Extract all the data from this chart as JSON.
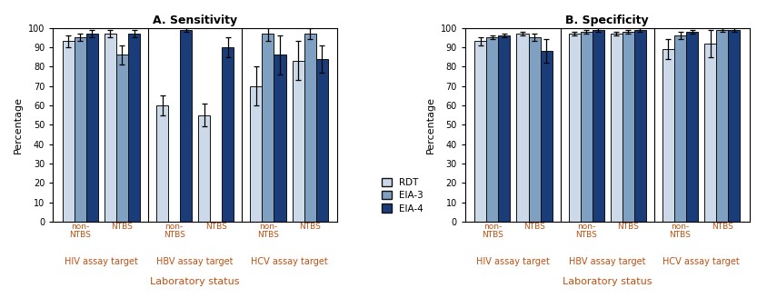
{
  "title_A": "A. Sensitivity",
  "title_B": "B. Specificity",
  "ylabel": "Percentage",
  "xlabel": "Laboratory status",
  "ylim": [
    0,
    100
  ],
  "yticks": [
    0,
    10,
    20,
    30,
    40,
    50,
    60,
    70,
    80,
    90,
    100
  ],
  "legend_labels": [
    "RDT",
    "EIA-3",
    "EIA-4"
  ],
  "colors": [
    "#ccd9e8",
    "#7fa0c0",
    "#1a3d7a"
  ],
  "edge_color": "#111111",
  "group_labels": [
    "non-\nNTBS",
    "NTBS",
    "non-\nNTBS",
    "NTBS",
    "non-\nNTBS",
    "NTBS"
  ],
  "assay_labels": [
    "HIV assay target",
    "HBV assay target",
    "HCV assay target"
  ],
  "assay_label_color": "#c05010",
  "tick_label_color": "#c05010",
  "xlabel_color": "#c05010",
  "title_color": "#000000",
  "sens_values": [
    [
      93,
      95,
      97
    ],
    [
      97,
      86,
      97
    ],
    [
      60,
      null,
      99
    ],
    [
      55,
      null,
      90
    ],
    [
      70,
      97,
      86
    ],
    [
      83,
      97,
      84
    ]
  ],
  "sens_errors": [
    [
      3,
      2,
      2
    ],
    [
      2,
      5,
      2
    ],
    [
      5,
      null,
      1
    ],
    [
      6,
      null,
      5
    ],
    [
      10,
      4,
      10
    ],
    [
      10,
      3,
      7
    ]
  ],
  "spec_values": [
    [
      93,
      95,
      96
    ],
    [
      97,
      95,
      88
    ],
    [
      97,
      98,
      99
    ],
    [
      97,
      98,
      99
    ],
    [
      89,
      96,
      98
    ],
    [
      92,
      99,
      99
    ]
  ],
  "spec_errors": [
    [
      2,
      1,
      1
    ],
    [
      1,
      2,
      6
    ],
    [
      1,
      1,
      1
    ],
    [
      1,
      1,
      1
    ],
    [
      5,
      2,
      1
    ],
    [
      7,
      1,
      1
    ]
  ]
}
